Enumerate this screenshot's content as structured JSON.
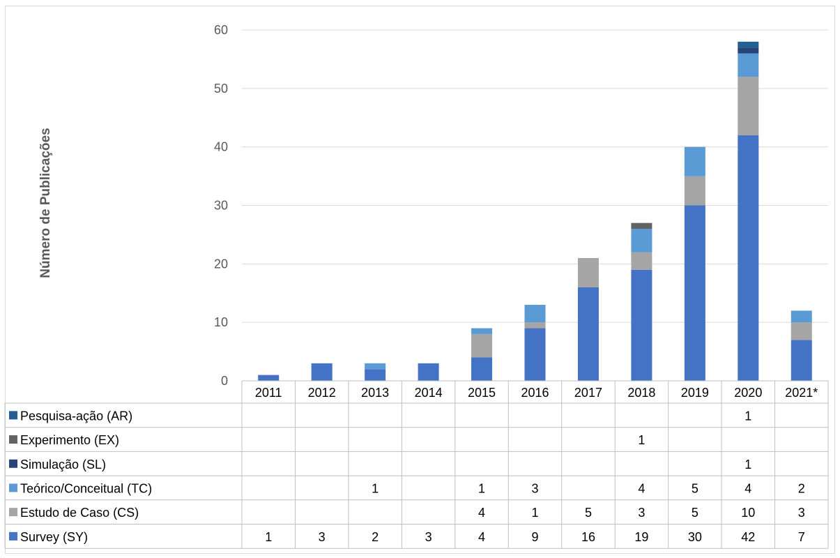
{
  "chart_data": {
    "type": "bar",
    "stacked": true,
    "title": "",
    "xlabel": "",
    "ylabel": "Número de Publicações",
    "ylim": [
      0,
      60
    ],
    "yticks": [
      0,
      10,
      20,
      30,
      40,
      50,
      60
    ],
    "grid": true,
    "legend": "data-table",
    "categories": [
      "2011",
      "2012",
      "2013",
      "2014",
      "2015",
      "2016",
      "2017",
      "2018",
      "2019",
      "2020",
      "2021*"
    ],
    "series": [
      {
        "name": "Survey (SY)",
        "color": "#4472c4",
        "values": [
          1,
          3,
          2,
          3,
          4,
          9,
          16,
          19,
          30,
          42,
          7
        ]
      },
      {
        "name": "Estudo de Caso (CS)",
        "color": "#a5a5a5",
        "values": [
          null,
          null,
          null,
          null,
          4,
          1,
          5,
          3,
          5,
          10,
          3
        ]
      },
      {
        "name": "Teórico/Conceitual (TC)",
        "color": "#5b9bd5",
        "values": [
          null,
          null,
          1,
          null,
          1,
          3,
          null,
          4,
          5,
          4,
          2
        ]
      },
      {
        "name": "Simulação (SL)",
        "color": "#264478",
        "values": [
          null,
          null,
          null,
          null,
          null,
          null,
          null,
          null,
          null,
          1,
          null
        ]
      },
      {
        "name": "Experimento (EX)",
        "color": "#636363",
        "values": [
          null,
          null,
          null,
          null,
          null,
          null,
          null,
          1,
          null,
          null,
          null
        ]
      },
      {
        "name": "Pesquisa-ação (AR)",
        "color": "#255e91",
        "values": [
          null,
          null,
          null,
          null,
          null,
          null,
          null,
          null,
          null,
          1,
          null
        ]
      }
    ]
  }
}
